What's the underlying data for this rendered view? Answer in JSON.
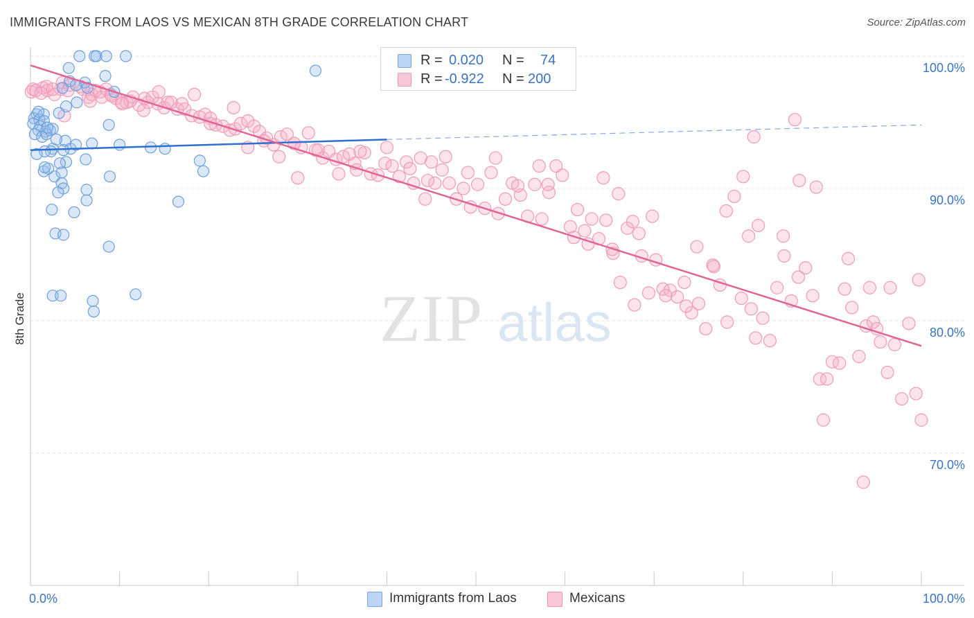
{
  "title": "IMMIGRANTS FROM LAOS VS MEXICAN 8TH GRADE CORRELATION CHART",
  "source": "Source: ZipAtlas.com",
  "watermark": {
    "zip": "ZIP",
    "atlas": "atlas"
  },
  "legend": {
    "laos": {
      "r_label": "R = ",
      "r_value": "0.020",
      "n_label": "N = ",
      "n_value": "74"
    },
    "mexicans": {
      "r_label": "R = ",
      "r_value": "-0.922",
      "n_label": "N = ",
      "n_value": "200"
    }
  },
  "bottom_legend": {
    "laos": "Immigrants from Laos",
    "mexicans": "Mexicans"
  },
  "chart_data": {
    "type": "scatter",
    "title": "IMMIGRANTS FROM LAOS VS MEXICAN 8TH GRADE CORRELATION CHART",
    "xlabel": "",
    "ylabel": "8th Grade",
    "xlim": [
      0,
      100
    ],
    "ylim": [
      60,
      100
    ],
    "x_tick_labels": [
      "0.0%",
      "100.0%"
    ],
    "y_ticks": [
      70,
      80,
      90,
      100
    ],
    "y_tick_labels": [
      "70.0%",
      "80.0%",
      "90.0%",
      "100.0%"
    ],
    "grid": true,
    "legend_position": "top-center",
    "colors": {
      "laos": "#8fb7ea",
      "laos_line": "#2f6fcf",
      "mexicans": "#f4a7c0",
      "mexicans_line": "#e06592"
    },
    "series": [
      {
        "name": "Immigrants from Laos",
        "R": 0.02,
        "N": 74,
        "trend": {
          "x": [
            0,
            40
          ],
          "y": [
            92.9,
            93.7
          ],
          "extended_to": [
            100,
            94.8
          ]
        },
        "points": [
          [
            5.5,
            100
          ],
          [
            7.2,
            100
          ],
          [
            7.4,
            100
          ],
          [
            8.5,
            100
          ],
          [
            10.7,
            100
          ],
          [
            4.3,
            99.1
          ],
          [
            32,
            98.9
          ],
          [
            8.4,
            98.5
          ],
          [
            4.4,
            98.1
          ],
          [
            6.1,
            98
          ],
          [
            6.4,
            97.6
          ],
          [
            3.6,
            97.6
          ],
          [
            5.2,
            96.5
          ],
          [
            4,
            96.2
          ],
          [
            0.7,
            95.6
          ],
          [
            1.5,
            95.6
          ],
          [
            0.4,
            95.3
          ],
          [
            1,
            95.2
          ],
          [
            1.5,
            95.1
          ],
          [
            3.2,
            95.7
          ],
          [
            0.3,
            94.9
          ],
          [
            1.1,
            94.7
          ],
          [
            0.9,
            94.4
          ],
          [
            1.7,
            94.3
          ],
          [
            2.2,
            94.4
          ],
          [
            2.5,
            94.5
          ],
          [
            0.5,
            94.1
          ],
          [
            1.3,
            93.9
          ],
          [
            1.8,
            94.1
          ],
          [
            8.8,
            94.8
          ],
          [
            3.9,
            93.6
          ],
          [
            4.5,
            93
          ],
          [
            6.9,
            93.4
          ],
          [
            3.7,
            92.9
          ],
          [
            5.1,
            93.3
          ],
          [
            10,
            93.3
          ],
          [
            15.1,
            93
          ],
          [
            2.5,
            93
          ],
          [
            2.3,
            92.8
          ],
          [
            1.6,
            92.8
          ],
          [
            0.7,
            92.6
          ],
          [
            1.5,
            91.3
          ],
          [
            2,
            91.5
          ],
          [
            4,
            92
          ],
          [
            3.3,
            91.9
          ],
          [
            1.6,
            91.6
          ],
          [
            2.7,
            90.9
          ],
          [
            19,
            92.1
          ],
          [
            3.5,
            90.4
          ],
          [
            8.9,
            90.9
          ],
          [
            19.4,
            91.3
          ],
          [
            3.7,
            90
          ],
          [
            6.3,
            89.9
          ],
          [
            3.1,
            89.7
          ],
          [
            6.3,
            89.1
          ],
          [
            16.6,
            89
          ],
          [
            2.4,
            88.4
          ],
          [
            4.9,
            88.2
          ],
          [
            2.8,
            86.6
          ],
          [
            3.7,
            86.5
          ],
          [
            8.8,
            85.6
          ],
          [
            2.5,
            81.9
          ],
          [
            3.4,
            81.9
          ],
          [
            7,
            81.5
          ],
          [
            11.8,
            82
          ],
          [
            7.1,
            80.7
          ],
          [
            5.1,
            97.8
          ],
          [
            9.4,
            97.3
          ],
          [
            2.9,
            93.7
          ],
          [
            6.2,
            92.2
          ],
          [
            0.9,
            95.8
          ],
          [
            1.9,
            94.6
          ],
          [
            3.5,
            91.2
          ],
          [
            13.5,
            93.1
          ]
        ]
      },
      {
        "name": "Mexicans",
        "R": -0.922,
        "N": 200,
        "trend": {
          "x": [
            0,
            100
          ],
          "y": [
            99.3,
            78.1
          ]
        },
        "points": [
          [
            0.1,
            97.3
          ],
          [
            0.3,
            97.5
          ],
          [
            0.6,
            97.4
          ],
          [
            1.4,
            97.6
          ],
          [
            1.9,
            97.4
          ],
          [
            2.7,
            97.1
          ],
          [
            3.4,
            97.5
          ],
          [
            3.6,
            98
          ],
          [
            4.4,
            97.8
          ],
          [
            5.6,
            97.7
          ],
          [
            6.5,
            96.9
          ],
          [
            6.9,
            97.1
          ],
          [
            7.3,
            97.4
          ],
          [
            8,
            96.9
          ],
          [
            8.5,
            97.5
          ],
          [
            9,
            97.1
          ],
          [
            9.6,
            96.8
          ],
          [
            10.2,
            96.5
          ],
          [
            10.8,
            96.5
          ],
          [
            11.5,
            96.9
          ],
          [
            12.2,
            96.3
          ],
          [
            12.8,
            96.8
          ],
          [
            13.2,
            96.5
          ],
          [
            13.7,
            96.9
          ],
          [
            14.3,
            96.4
          ],
          [
            15,
            96.1
          ],
          [
            15.4,
            96.5
          ],
          [
            16.5,
            96
          ],
          [
            17.3,
            96
          ],
          [
            18.1,
            95.5
          ],
          [
            19,
            95.4
          ],
          [
            19.6,
            95.6
          ],
          [
            20.2,
            95.3
          ],
          [
            20.8,
            94.8
          ],
          [
            21.6,
            94.7
          ],
          [
            22.4,
            94.4
          ],
          [
            23,
            94.5
          ],
          [
            23.6,
            94.9
          ],
          [
            24.4,
            95.1
          ],
          [
            25.1,
            94.7
          ],
          [
            25.7,
            94.3
          ],
          [
            26.5,
            93.8
          ],
          [
            27.3,
            93.3
          ],
          [
            28.1,
            93.9
          ],
          [
            28.8,
            94.1
          ],
          [
            29.6,
            93.4
          ],
          [
            30.4,
            93.1
          ],
          [
            31.2,
            94.2
          ],
          [
            32,
            92.9
          ],
          [
            32.8,
            92.3
          ],
          [
            33.5,
            92.8
          ],
          [
            34.3,
            92.2
          ],
          [
            35.1,
            92.4
          ],
          [
            35.8,
            92.6
          ],
          [
            36.6,
            91.4
          ],
          [
            37.5,
            92.7
          ],
          [
            38.2,
            91.1
          ],
          [
            39,
            91
          ],
          [
            39.8,
            91.9
          ],
          [
            40.6,
            91.7
          ],
          [
            41.4,
            90.9
          ],
          [
            42.2,
            92
          ],
          [
            43,
            90.4
          ],
          [
            43.8,
            92.3
          ],
          [
            44.6,
            90.6
          ],
          [
            45.4,
            90.4
          ],
          [
            46.2,
            91.4
          ],
          [
            47,
            90.4
          ],
          [
            47.8,
            89.2
          ],
          [
            48.6,
            90
          ],
          [
            49.4,
            88.6
          ],
          [
            50.2,
            90.3
          ],
          [
            51,
            88.5
          ],
          [
            51.7,
            91.2
          ],
          [
            52.5,
            88.1
          ],
          [
            53.3,
            89.2
          ],
          [
            54.1,
            90.4
          ],
          [
            55,
            89.5
          ],
          [
            55.8,
            87.9
          ],
          [
            56.6,
            90.3
          ],
          [
            57.4,
            87.7
          ],
          [
            58.2,
            89.7
          ],
          [
            59,
            91.7
          ],
          [
            59.7,
            91
          ],
          [
            60.6,
            87.1
          ],
          [
            61.4,
            88.4
          ],
          [
            62.2,
            86.8
          ],
          [
            63,
            87.7
          ],
          [
            63.8,
            86.2
          ],
          [
            64.6,
            87.6
          ],
          [
            65.4,
            85.1
          ],
          [
            66.2,
            82.9
          ],
          [
            67,
            87
          ],
          [
            67.8,
            81.2
          ],
          [
            68.6,
            84.9
          ],
          [
            69.4,
            82.1
          ],
          [
            70.2,
            84.6
          ],
          [
            71,
            82.4
          ],
          [
            71.8,
            82.3
          ],
          [
            72.6,
            81.8
          ],
          [
            73.4,
            82.9
          ],
          [
            74.2,
            80.6
          ],
          [
            75,
            81.3
          ],
          [
            75.8,
            79.4
          ],
          [
            76.6,
            84.2
          ],
          [
            77.4,
            82.7
          ],
          [
            78.2,
            79.9
          ],
          [
            79,
            89.4
          ],
          [
            79.8,
            81.7
          ],
          [
            80.6,
            86.4
          ],
          [
            81.4,
            78.7
          ],
          [
            82.2,
            80.2
          ],
          [
            83,
            78.5
          ],
          [
            83.8,
            82.5
          ],
          [
            84.6,
            84.9
          ],
          [
            85.4,
            81.5
          ],
          [
            86.2,
            83.3
          ],
          [
            87,
            84
          ],
          [
            87.8,
            81.9
          ],
          [
            88.6,
            75.6
          ],
          [
            89.4,
            75.6
          ],
          [
            90,
            76.9
          ],
          [
            90.8,
            76.8
          ],
          [
            91.4,
            82.4
          ],
          [
            92.2,
            81
          ],
          [
            93,
            77.3
          ],
          [
            93.8,
            79.6
          ],
          [
            94.6,
            79.9
          ],
          [
            95.4,
            78.4
          ],
          [
            96.2,
            76.1
          ],
          [
            97,
            78.2
          ],
          [
            97.8,
            74.1
          ],
          [
            98.6,
            79.8
          ],
          [
            99.4,
            74.5
          ],
          [
            100,
            72.5
          ],
          [
            99.7,
            83.1
          ],
          [
            96.5,
            82.5
          ],
          [
            94.2,
            82.5
          ],
          [
            91.8,
            84.7
          ],
          [
            89,
            72.5
          ],
          [
            93.5,
            67.8
          ],
          [
            95,
            79.4
          ],
          [
            84.5,
            86.4
          ],
          [
            81.2,
            93.9
          ],
          [
            81.7,
            87.2
          ],
          [
            88.2,
            90.1
          ],
          [
            86.3,
            90.6
          ],
          [
            85.8,
            95.2
          ],
          [
            80,
            90.9
          ],
          [
            78.1,
            88.3
          ],
          [
            76.7,
            84.1
          ],
          [
            73.6,
            81.1
          ],
          [
            71.3,
            81.9
          ],
          [
            69.8,
            87.9
          ],
          [
            67.6,
            87.5
          ],
          [
            66,
            89.6
          ],
          [
            64.3,
            90.8
          ],
          [
            62.6,
            85.8
          ],
          [
            61,
            86.3
          ],
          [
            57.1,
            91.7
          ],
          [
            54.7,
            90.2
          ],
          [
            52.2,
            92.3
          ],
          [
            49.1,
            91.2
          ],
          [
            46.6,
            92.4
          ],
          [
            45,
            92
          ],
          [
            42.6,
            91.5
          ],
          [
            40,
            93.1
          ],
          [
            37,
            92.8
          ],
          [
            34.6,
            91.1
          ],
          [
            32.3,
            92.9
          ],
          [
            30,
            90.8
          ],
          [
            27.9,
            92.4
          ],
          [
            26.2,
            93.6
          ],
          [
            24.4,
            93.1
          ],
          [
            22.8,
            96.1
          ],
          [
            20.2,
            94.9
          ],
          [
            18.4,
            97.1
          ],
          [
            17,
            96.4
          ],
          [
            15.8,
            96.5
          ],
          [
            14.4,
            97.3
          ],
          [
            12.7,
            95.9
          ],
          [
            11.2,
            96.6
          ],
          [
            10.3,
            96.4
          ],
          [
            9.1,
            97
          ],
          [
            7.8,
            97.3
          ],
          [
            6.7,
            96.6
          ],
          [
            5.9,
            97.5
          ],
          [
            4.2,
            97.4
          ],
          [
            3.8,
            95.5
          ],
          [
            2.5,
            97.5
          ],
          [
            1.8,
            97.7
          ],
          [
            1.2,
            97.2
          ],
          [
            29.6,
            93.4
          ],
          [
            36.4,
            91.9
          ],
          [
            44.3,
            89.2
          ],
          [
            58.1,
            90.3
          ],
          [
            65.3,
            85.4
          ],
          [
            68.3,
            86.6
          ],
          [
            74.8,
            85.6
          ],
          [
            80.9,
            80.9
          ]
        ]
      }
    ]
  }
}
